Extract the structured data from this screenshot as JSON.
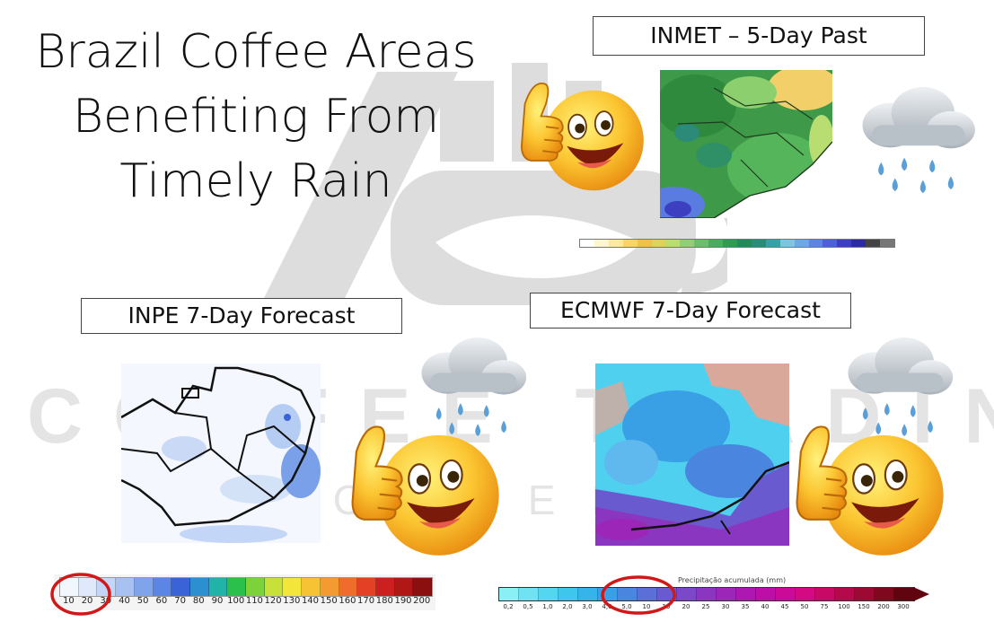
{
  "title": {
    "line1": "Brazil Coffee Areas",
    "line2": "Benefiting From",
    "line3": "Timely Rain"
  },
  "watermark": {
    "brand": "COFFEE TRADING",
    "sub": "ACADEMY"
  },
  "panels": {
    "inmet": {
      "label": "INMET – 5-Day Past"
    },
    "inpe": {
      "label": "INPE 7-Day Forecast"
    },
    "ecmwf": {
      "label": "ECMWF 7-Day Forecast"
    }
  },
  "inpe_scale": {
    "ticks": [
      "10",
      "20",
      "30",
      "40",
      "50",
      "60",
      "70",
      "80",
      "90",
      "100",
      "110",
      "120",
      "130",
      "140",
      "150",
      "160",
      "170",
      "180",
      "190",
      "200"
    ],
    "colors": [
      "#f2f6fd",
      "#dfe9fb",
      "#c3d6f7",
      "#a6c1f2",
      "#7fa4ec",
      "#5b86e6",
      "#3b63d8",
      "#2c8fd0",
      "#22b3a8",
      "#2bbf4b",
      "#7dd13b",
      "#c8e03a",
      "#f3e53a",
      "#f6c335",
      "#f39a31",
      "#ee6d2a",
      "#e34025",
      "#cc2020",
      "#b01818",
      "#8c0f0f"
    ]
  },
  "ecmwf_scale": {
    "title": "Precipitação acumulada (mm)",
    "ticks": [
      "0,2",
      "0,5",
      "1,0",
      "2,0",
      "3,0",
      "4,0",
      "5,0",
      "10",
      "15",
      "20",
      "25",
      "30",
      "35",
      "40",
      "45",
      "50",
      "75",
      "100",
      "150",
      "200",
      "300"
    ],
    "colors": [
      "#8af0f5",
      "#6fe3f2",
      "#54d6ef",
      "#3ec6ec",
      "#35b4ea",
      "#3aa0e6",
      "#4a86e0",
      "#5a6fd8",
      "#6a5ad0",
      "#7a48c8",
      "#8b36c0",
      "#9b26b8",
      "#ac18b0",
      "#bd0ea8",
      "#cc0a98",
      "#d40a82",
      "#c80a66",
      "#b40a4c",
      "#9c0a34",
      "#80081e",
      "#600510"
    ]
  },
  "inmet_scale": {
    "colors": [
      "#ffffff",
      "#fff6d0",
      "#fde8a0",
      "#f9d46a",
      "#f2c04a",
      "#e0d060",
      "#b8dd70",
      "#90d070",
      "#6ac06a",
      "#48ad5c",
      "#2f9a50",
      "#258a5a",
      "#2b8a78",
      "#3aa0a8",
      "#7fc4e4",
      "#6aa8e8",
      "#5a86e0",
      "#4b62d4",
      "#3c40c0",
      "#2c2aa0",
      "#444444",
      "#777777"
    ]
  },
  "icons": [
    "thumbs-up-emoji",
    "rain-cloud",
    "red-circle-highlight"
  ]
}
